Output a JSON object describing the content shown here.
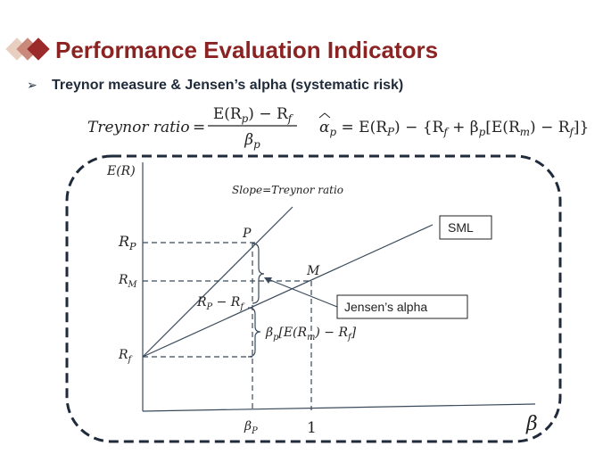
{
  "header": {
    "title": "Performance Evaluation Indicators"
  },
  "bullet": {
    "text": "Treynor measure & Jensen’s alpha (systematic risk)"
  },
  "formulas": {
    "treynor": {
      "label": "Treynor ratio",
      "eq": "=",
      "numerator": [
        "E(R",
        "p",
        ") − R",
        "f"
      ],
      "denominator": [
        "β",
        "p"
      ]
    },
    "jensen": {
      "parts": [
        "α",
        "p",
        " = E(R",
        "P",
        ") − {R",
        "f",
        " + β",
        "p",
        "[E(R",
        "m",
        ") − R",
        "f",
        "]}"
      ]
    }
  },
  "diagram": {
    "y_axis_label": "E(R)",
    "x_axis_label": "β",
    "slope_label": "Slope=Treynor ratio",
    "point_p": "P",
    "point_m": "M",
    "rp": [
      "R",
      "P"
    ],
    "rm": [
      "R",
      "M"
    ],
    "rf": [
      "R",
      "f"
    ],
    "beta_p": [
      "β",
      "P"
    ],
    "one": "1",
    "sml": "SML",
    "jensens_alpha": "Jensen’s alpha",
    "diff": [
      "R",
      "P",
      " − R",
      "f"
    ],
    "beta_term": [
      "β",
      "p",
      "[E(R",
      "m",
      ") − R",
      "f",
      "]"
    ]
  }
}
